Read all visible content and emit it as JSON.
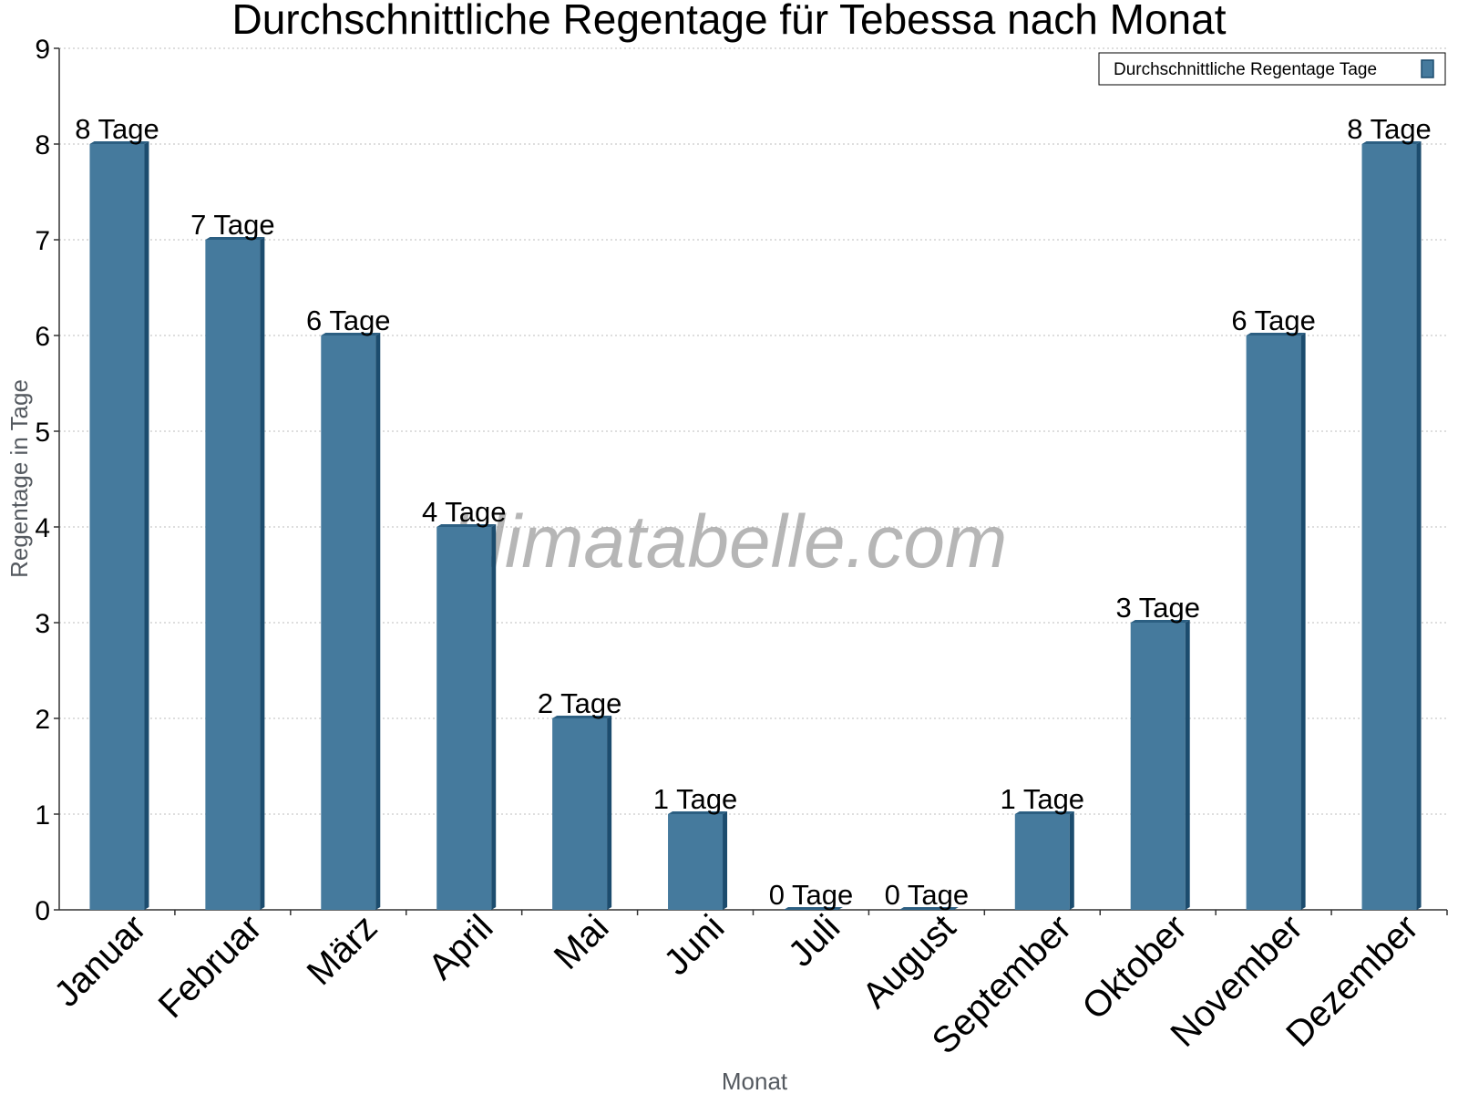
{
  "watermark": "klimatabelle.com",
  "colors": {
    "bar_front": "#457a9d",
    "bar_side": "#1c4c6e",
    "bar_top": "#2c5f82",
    "grid": "#bdbdbd",
    "axis": "#333333"
  },
  "chart_data": {
    "type": "bar",
    "title": "Durchschnittliche Regentage für Tebessa nach Monat",
    "xlabel": "Monat",
    "ylabel": "Regentage in Tage",
    "ylim": [
      0,
      9
    ],
    "yticks": [
      "0",
      "1",
      "2",
      "3",
      "4",
      "5",
      "6",
      "7",
      "8",
      "9"
    ],
    "grid": true,
    "legend_position": "top-right",
    "categories": [
      "Januar",
      "Februar",
      "März",
      "April",
      "Mai",
      "Juni",
      "Juli",
      "August",
      "September",
      "Oktober",
      "November",
      "Dezember"
    ],
    "series": [
      {
        "name": "Durchschnittliche Regentage Tage",
        "values": [
          8,
          7,
          6,
          4,
          2,
          1,
          0,
          0,
          1,
          3,
          6,
          8
        ],
        "labels": [
          "8 Tage",
          "7 Tage",
          "6 Tage",
          "4 Tage",
          "2 Tage",
          "1 Tage",
          "0 Tage",
          "0 Tage",
          "1 Tage",
          "3 Tage",
          "6 Tage",
          "8 Tage"
        ]
      }
    ]
  }
}
